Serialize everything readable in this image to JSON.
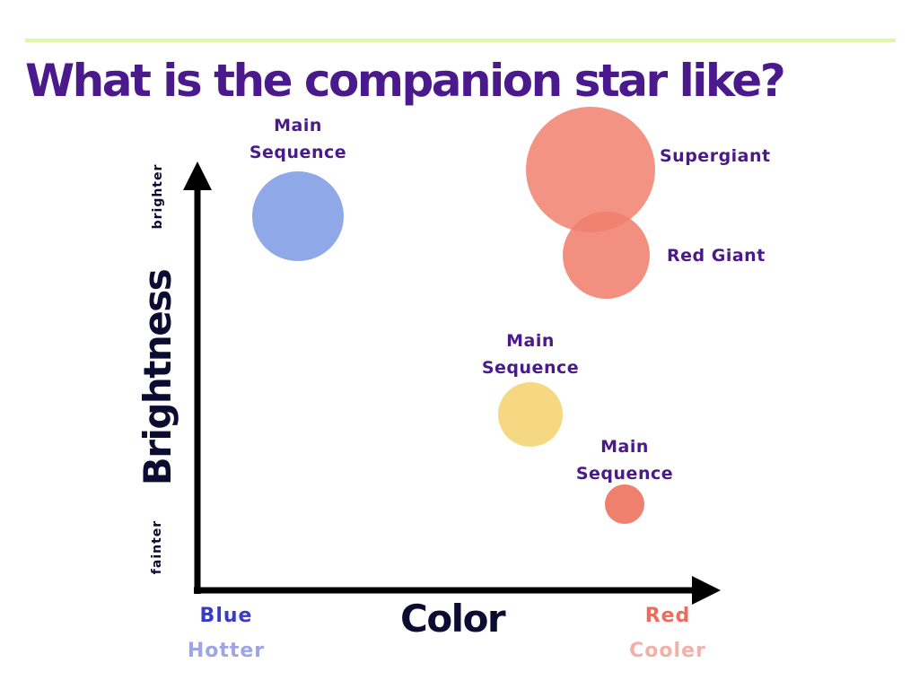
{
  "title": "What is the companion star like?",
  "axes": {
    "x_title": "Color",
    "y_title": "Brightness",
    "y_top": "brighter",
    "y_bottom": "fainter",
    "x_left_primary": "Blue",
    "x_left_secondary": "Hotter",
    "x_right_primary": "Red",
    "x_right_secondary": "Cooler"
  },
  "stars": [
    {
      "name": "blue-main-sequence",
      "label_line1": "Main",
      "label_line2": "Sequence",
      "color": "#8ea8e8"
    },
    {
      "name": "supergiant",
      "label": "Supergiant",
      "color": "#f0806e"
    },
    {
      "name": "red-giant",
      "label": "Red Giant",
      "color": "#f0806e"
    },
    {
      "name": "yellow-main-sequence",
      "label_line1": "Main",
      "label_line2": "Sequence",
      "color": "#f7d882"
    },
    {
      "name": "red-main-sequence",
      "label_line1": "Main",
      "label_line2": "Sequence",
      "color": "#f0806e"
    }
  ],
  "colors": {
    "title": "#4a1a8c",
    "label": "#4a1a8c",
    "axis": "#000000",
    "blue": "#3a3ac8",
    "hotter": "#9ea4e6",
    "red": "#ee6a5a",
    "cooler": "#f3b0a6",
    "rule": "#dcf7a6"
  }
}
